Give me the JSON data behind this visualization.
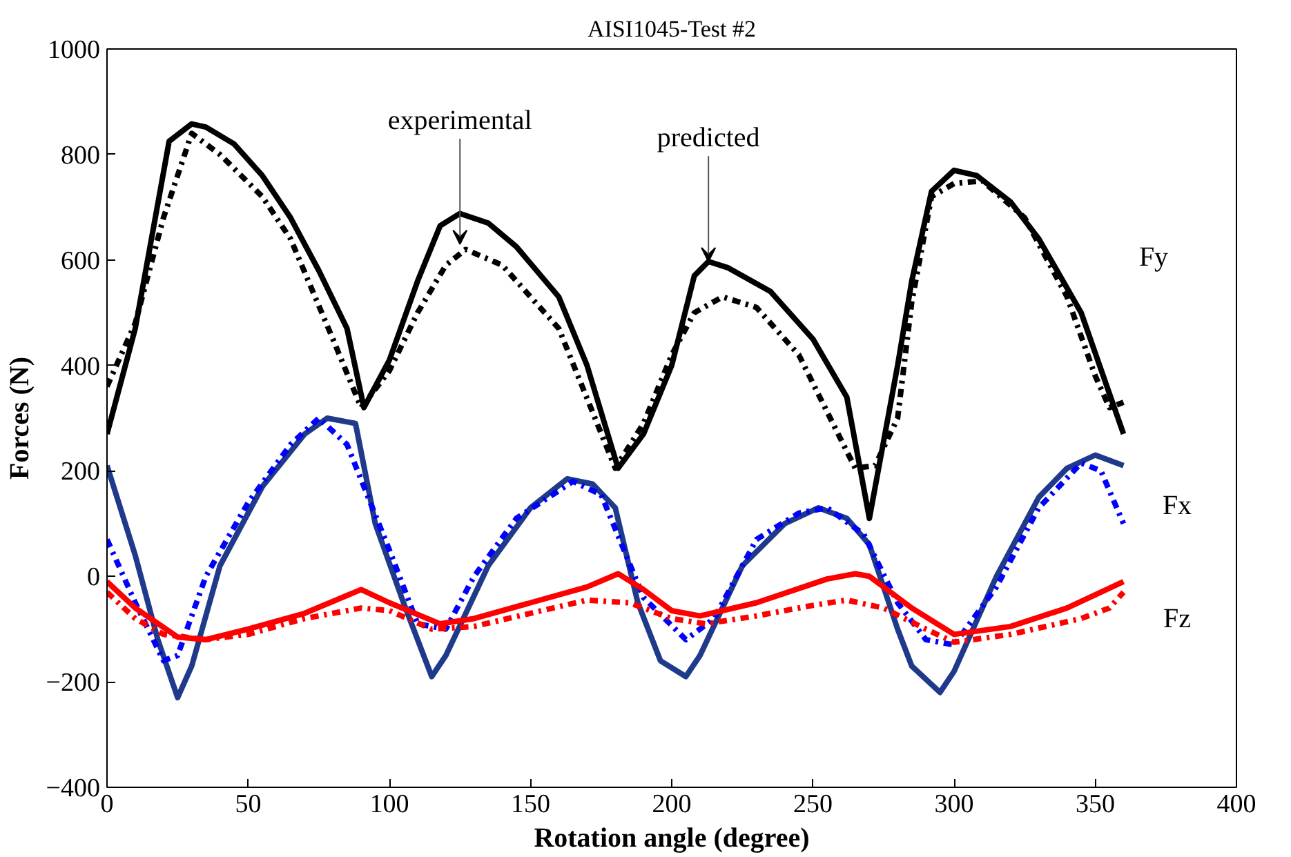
{
  "chart_data": {
    "type": "line",
    "title": "AISI1045-Test #2",
    "xlabel": "Rotation angle (degree)",
    "ylabel": "Forces (N)",
    "xlim": [
      0,
      400
    ],
    "xticks": [
      0,
      50,
      100,
      150,
      200,
      250,
      300,
      350,
      400
    ],
    "ylim": [
      -400,
      1000
    ],
    "yticks": [
      -400,
      -200,
      0,
      200,
      400,
      600,
      800,
      1000
    ],
    "grid": false,
    "series": [
      {
        "color": "#000000",
        "line_style": "solid",
        "x": [
          0,
          10,
          22,
          30,
          35,
          45,
          55,
          65,
          75,
          85,
          91,
          100,
          110,
          118,
          125,
          135,
          145,
          160,
          170,
          181,
          190,
          200,
          208,
          213,
          220,
          235,
          250,
          262,
          270,
          280,
          285,
          292,
          300,
          308,
          320,
          330,
          345,
          360
        ],
        "values": [
          270,
          470,
          825,
          858,
          852,
          820,
          760,
          680,
          580,
          470,
          320,
          410,
          560,
          665,
          688,
          670,
          625,
          530,
          400,
          205,
          270,
          400,
          570,
          597,
          585,
          540,
          450,
          340,
          110,
          400,
          560,
          730,
          770,
          760,
          710,
          640,
          500,
          270
        ]
      },
      {
        "color": "#000000",
        "line_style": "dashdot",
        "x": [
          0,
          10,
          20,
          30,
          40,
          55,
          65,
          80,
          90,
          100,
          110,
          120,
          127,
          140,
          160,
          180,
          190,
          200,
          208,
          218,
          230,
          245,
          258,
          265,
          272,
          280,
          285,
          292,
          300,
          310,
          325,
          340,
          350,
          355,
          360
        ],
        "values": [
          360,
          480,
          680,
          840,
          800,
          720,
          640,
          450,
          320,
          390,
          500,
          590,
          620,
          590,
          470,
          205,
          290,
          420,
          500,
          530,
          510,
          420,
          280,
          205,
          210,
          300,
          520,
          720,
          745,
          750,
          680,
          530,
          380,
          320,
          330
        ]
      },
      {
        "color": "#1f3a8a",
        "line_style": "solid",
        "x": [
          0,
          10,
          18,
          25,
          30,
          40,
          55,
          70,
          78,
          88,
          95,
          105,
          115,
          120,
          135,
          150,
          163,
          172,
          180,
          188,
          196,
          205,
          210,
          225,
          240,
          252,
          262,
          270,
          280,
          285,
          295,
          300,
          315,
          330,
          340,
          350,
          360
        ],
        "values": [
          210,
          40,
          -120,
          -230,
          -170,
          20,
          170,
          270,
          300,
          290,
          100,
          -50,
          -190,
          -150,
          20,
          130,
          185,
          175,
          130,
          -50,
          -160,
          -190,
          -150,
          20,
          100,
          130,
          110,
          60,
          -100,
          -170,
          -220,
          -180,
          0,
          150,
          205,
          230,
          210
        ]
      },
      {
        "color": "#0000ff",
        "line_style": "dashdot",
        "x": [
          0,
          10,
          20,
          25,
          35,
          50,
          65,
          75,
          85,
          100,
          110,
          120,
          130,
          145,
          165,
          175,
          190,
          205,
          215,
          230,
          245,
          255,
          268,
          280,
          290,
          300,
          315,
          330,
          345,
          352,
          360
        ],
        "values": [
          70,
          -50,
          -160,
          -150,
          0,
          140,
          250,
          300,
          250,
          50,
          -90,
          -100,
          0,
          110,
          180,
          155,
          -40,
          -120,
          -80,
          70,
          120,
          130,
          80,
          -50,
          -120,
          -130,
          -20,
          130,
          215,
          200,
          100
        ]
      },
      {
        "color": "#ff0000",
        "line_style": "solid",
        "x": [
          0,
          10,
          25,
          35,
          50,
          70,
          90,
          100,
          118,
          130,
          150,
          170,
          181,
          190,
          200,
          210,
          230,
          255,
          265,
          270,
          285,
          300,
          320,
          340,
          360
        ],
        "values": [
          -10,
          -60,
          -115,
          -120,
          -100,
          -70,
          -25,
          -50,
          -90,
          -80,
          -50,
          -20,
          5,
          -25,
          -65,
          -75,
          -50,
          -5,
          5,
          0,
          -60,
          -110,
          -95,
          -60,
          -10
        ]
      },
      {
        "color": "#ff0000",
        "line_style": "dashdot",
        "x": [
          0,
          10,
          20,
          35,
          50,
          70,
          90,
          100,
          115,
          130,
          150,
          170,
          185,
          200,
          212,
          230,
          250,
          262,
          275,
          290,
          300,
          320,
          345,
          355,
          360
        ],
        "values": [
          -30,
          -80,
          -110,
          -120,
          -110,
          -80,
          -60,
          -65,
          -100,
          -95,
          -70,
          -45,
          -50,
          -80,
          -90,
          -75,
          -55,
          -45,
          -60,
          -100,
          -125,
          -110,
          -80,
          -60,
          -30
        ]
      }
    ],
    "annotations": [
      {
        "text": "experimental",
        "x": 125,
        "y": 630
      },
      {
        "text": "predicted",
        "x": 213,
        "y": 597
      },
      "Fy",
      "Fx",
      "Fz"
    ]
  }
}
